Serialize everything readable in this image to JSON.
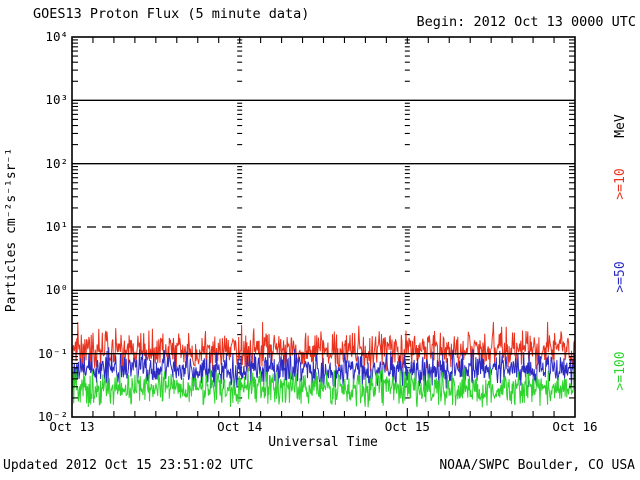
{
  "header": {
    "title": "GOES13 Proton Flux (5 minute data)",
    "begin": "Begin: 2012 Oct 13 0000 UTC"
  },
  "axes": {
    "y_label": "Particles cm⁻²s⁻¹sr⁻¹",
    "x_label": "Universal Time",
    "right_unit_label": "MeV"
  },
  "footer": {
    "updated": "Updated 2012 Oct 15 23:51:02 UTC",
    "source": "NOAA/SWPC Boulder, CO USA"
  },
  "colors": {
    "frame": "#000000",
    "background": "#ffffff",
    "series_gte10": "#e8321e",
    "series_gte50": "#2b2bc4",
    "series_gte100": "#2ed32e"
  },
  "chart_data": {
    "type": "line",
    "title": "GOES13 Proton Flux (5 minute data)",
    "xlabel": "Universal Time",
    "ylabel": "Particles cm-2 s-1 sr-1",
    "x_start": "2012 Oct 13 0000 UTC",
    "x_days": 3,
    "sample_interval_minutes": 5,
    "samples_per_day": 288,
    "x_ticks": [
      {
        "label": "Oct 13",
        "day": 0
      },
      {
        "label": "Oct 14",
        "day": 1
      },
      {
        "label": "Oct 15",
        "day": 2
      },
      {
        "label": "Oct 16",
        "day": 3
      }
    ],
    "y_log_min": -2,
    "y_log_max": 4,
    "y_ticks": [
      {
        "label": "10⁴",
        "log": 4
      },
      {
        "label": "10³",
        "log": 3
      },
      {
        "label": "10²",
        "log": 2
      },
      {
        "label": "10¹",
        "log": 1
      },
      {
        "label": "10⁰",
        "log": 0
      },
      {
        "label": "10⁻¹",
        "log": -1
      },
      {
        "label": "10⁻²",
        "log": -2
      }
    ],
    "solid_gridlines_log": [
      3,
      2,
      0,
      -1
    ],
    "dashed_gridlines_log": [
      1
    ],
    "minor_x_ticks_per_day": 8,
    "day_boundary_tick_columns": [
      1,
      2
    ],
    "legend_position": "right",
    "series": [
      {
        "name": ">=10 MeV proton flux",
        "legend": ">=10",
        "color": "#e8321e",
        "approx_level": "~1e-1",
        "band": {
          "center_log10": -0.95,
          "halfwidth_log10": 0.22,
          "spike_probability": 0.05,
          "spike_max_log10": 0.38,
          "floor_log10": -1.99,
          "ceil_log10": -0.5
        },
        "seed": 1101
      },
      {
        "name": ">=50 MeV proton flux",
        "legend": ">=50",
        "color": "#2b2bc4",
        "approx_level": "~5e-2",
        "band": {
          "center_log10": -1.26,
          "halfwidth_log10": 0.21,
          "spike_probability": 0.03,
          "spike_max_log10": 0.22,
          "floor_log10": -1.99,
          "ceil_log10": -0.9
        },
        "seed": 5050
      },
      {
        "name": ">=100 MeV proton flux",
        "legend": ">=100",
        "color": "#2ed32e",
        "approx_level": "~2.5e-2",
        "band": {
          "center_log10": -1.55,
          "halfwidth_log10": 0.21,
          "spike_probability": 0.03,
          "spike_max_log10": 0.2,
          "floor_log10": -1.99,
          "ceil_log10": -1.15
        },
        "seed": 77001
      }
    ]
  }
}
